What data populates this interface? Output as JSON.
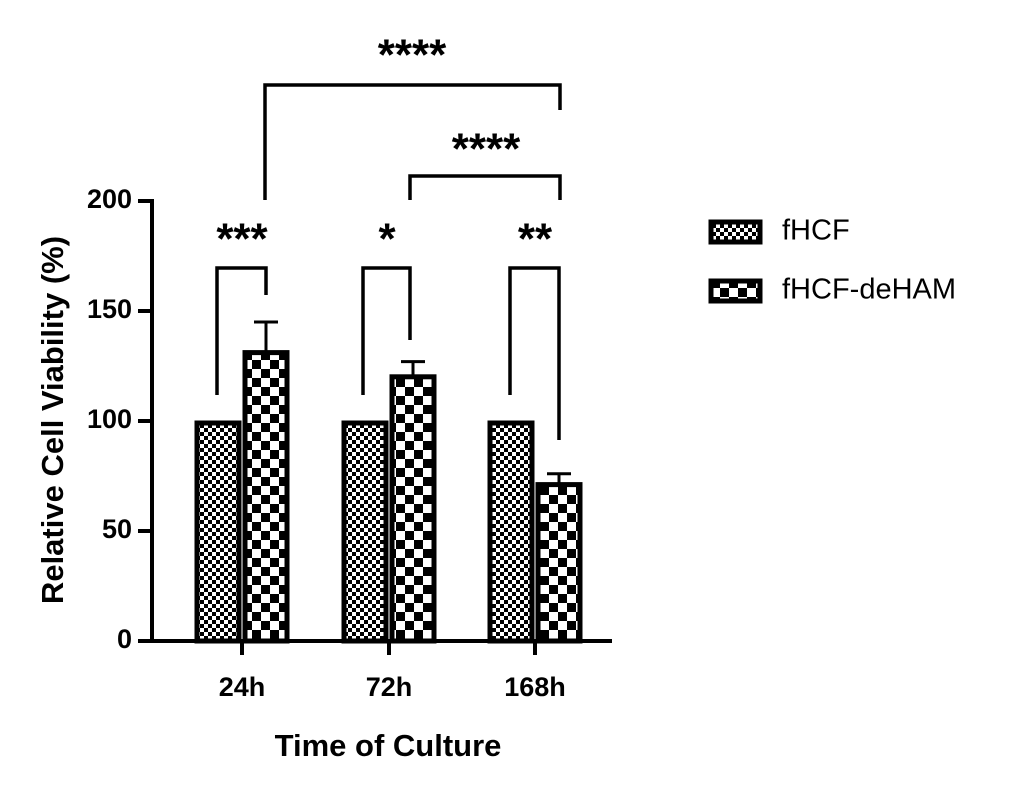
{
  "chart_data": {
    "type": "bar",
    "x_label": "Time of Culture",
    "y_label": "Relative Cell Viability (%)",
    "categories": [
      "24h",
      "72h",
      "168h"
    ],
    "series": [
      {
        "name": "fHCF",
        "color": "#000000",
        "values": [
          100,
          100,
          100
        ]
      },
      {
        "name": "fHCF-deHAM",
        "color": "#000000",
        "values": [
          132,
          121,
          72
        ],
        "errors": [
          13,
          6,
          4
        ]
      }
    ],
    "ylim": [
      0,
      200
    ],
    "yticks": [
      0,
      50,
      100,
      150,
      200
    ],
    "annotations": [
      "***",
      "*",
      "**",
      "****",
      "****"
    ],
    "grid": false
  }
}
